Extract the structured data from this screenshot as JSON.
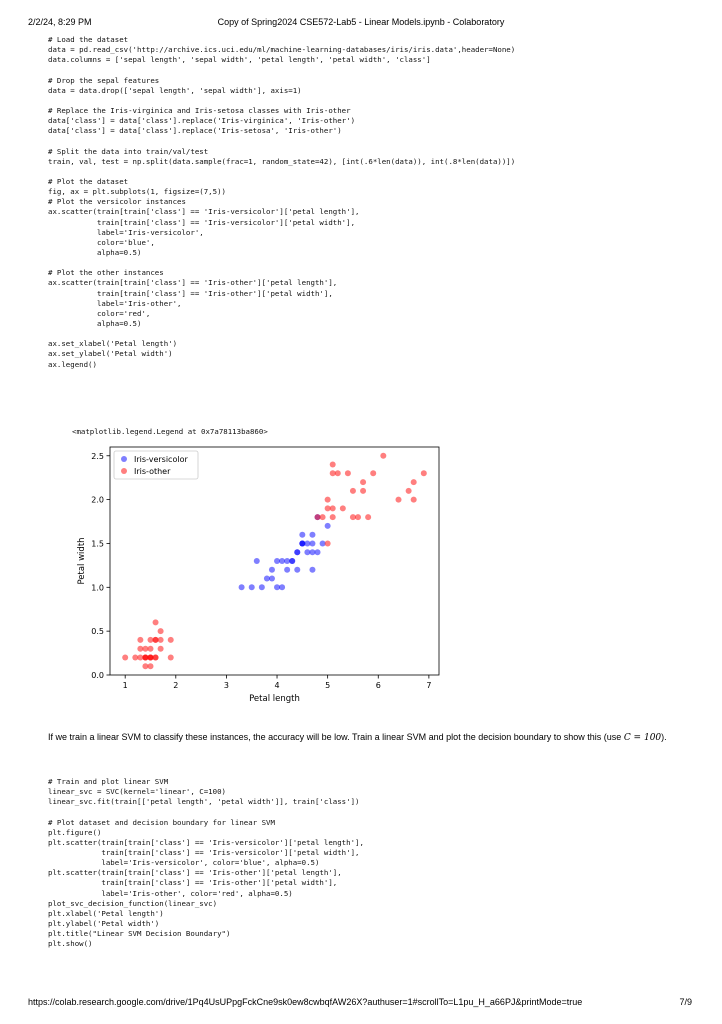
{
  "header": {
    "datetime": "2/2/24, 8:29 PM",
    "title": "Copy of Spring2024 CSE572-Lab5 - Linear Models.ipynb - Colaboratory"
  },
  "code_cell_1": [
    "# Load the dataset",
    "data = pd.read_csv('http://archive.ics.uci.edu/ml/machine-learning-databases/iris/iris.data',header=None)",
    "data.columns = ['sepal length', 'sepal width', 'petal length', 'petal width', 'class']",
    "",
    "# Drop the sepal features",
    "data = data.drop(['sepal length', 'sepal width'], axis=1)",
    "",
    "# Replace the Iris-virginica and Iris-setosa classes with Iris-other",
    "data['class'] = data['class'].replace('Iris-virginica', 'Iris-other')",
    "data['class'] = data['class'].replace('Iris-setosa', 'Iris-other')",
    "",
    "# Split the data into train/val/test",
    "train, val, test = np.split(data.sample(frac=1, random_state=42), [int(.6*len(data)), int(.8*len(data))])",
    "",
    "# Plot the dataset",
    "fig, ax = plt.subplots(1, figsize=(7,5))",
    "# Plot the versicolor instances",
    "ax.scatter(train[train['class'] == 'Iris-versicolor']['petal length'],",
    "           train[train['class'] == 'Iris-versicolor']['petal width'],",
    "           label='Iris-versicolor',",
    "           color='blue',",
    "           alpha=0.5)",
    "",
    "# Plot the other instances",
    "ax.scatter(train[train['class'] == 'Iris-other']['petal length'],",
    "           train[train['class'] == 'Iris-other']['petal width'],",
    "           label='Iris-other',",
    "           color='red',",
    "           alpha=0.5)",
    "",
    "ax.set_xlabel('Petal length')",
    "ax.set_ylabel('Petal width')",
    "ax.legend()"
  ],
  "output_text": "<matplotlib.legend.Legend at 0x7a78113ba860>",
  "markdown": {
    "text": "If we train a linear SVM to classify these instances, the accuracy will be low. Train a linear SVM and plot the decision boundary to show this (use",
    "math": "C = 100",
    "suffix": ")."
  },
  "code_cell_2": [
    "# Train and plot linear SVM",
    "linear_svc = SVC(kernel='linear', C=100)",
    "linear_svc.fit(train[['petal length', 'petal width']], train['class'])",
    "",
    "# Plot dataset and decision boundary for linear SVM",
    "plt.figure()",
    "plt.scatter(train[train['class'] == 'Iris-versicolor']['petal length'],",
    "            train[train['class'] == 'Iris-versicolor']['petal width'],",
    "            label='Iris-versicolor', color='blue', alpha=0.5)",
    "plt.scatter(train[train['class'] == 'Iris-other']['petal length'],",
    "            train[train['class'] == 'Iris-other']['petal width'],",
    "            label='Iris-other', color='red', alpha=0.5)",
    "plot_svc_decision_function(linear_svc)",
    "plt.xlabel('Petal length')",
    "plt.ylabel('Petal width')",
    "plt.title(\"Linear SVM Decision Boundary\")",
    "plt.show()"
  ],
  "footer": {
    "url": "https://colab.research.google.com/drive/1Pq4UsUPpgFckCne9sk0ew8cwbqfAW26X?authuser=1#scrollTo=L1pu_H_a66PJ&printMode=true",
    "page": "7/9"
  },
  "colors": {
    "versicolor": "#0000ff",
    "other": "#ff0000",
    "axes": "#000000"
  },
  "chart_data": {
    "type": "scatter",
    "xlabel": "Petal length",
    "ylabel": "Petal width",
    "xlim": [
      0.7,
      7.2
    ],
    "ylim": [
      0.0,
      2.6
    ],
    "xticks": [
      1,
      2,
      3,
      4,
      5,
      6,
      7
    ],
    "yticks": [
      0.0,
      0.5,
      1.0,
      1.5,
      2.0,
      2.5
    ],
    "ytick_labels": [
      "0.0",
      "0.5",
      "1.0",
      "1.5",
      "2.0",
      "2.5"
    ],
    "legend": "top-left",
    "grid": false,
    "series": [
      {
        "name": "Iris-versicolor",
        "color": "#0000ff",
        "alpha": 0.5,
        "points": [
          [
            3.3,
            1.0
          ],
          [
            3.5,
            1.0
          ],
          [
            3.7,
            1.0
          ],
          [
            3.8,
            1.1
          ],
          [
            3.9,
            1.1
          ],
          [
            3.9,
            1.2
          ],
          [
            4.0,
            1.0
          ],
          [
            4.1,
            1.0
          ],
          [
            4.0,
            1.3
          ],
          [
            4.1,
            1.3
          ],
          [
            3.6,
            1.3
          ],
          [
            4.2,
            1.3
          ],
          [
            4.3,
            1.3
          ],
          [
            4.4,
            1.2
          ],
          [
            4.2,
            1.2
          ],
          [
            4.4,
            1.4
          ],
          [
            4.5,
            1.5
          ],
          [
            4.5,
            1.6
          ],
          [
            4.4,
            1.4
          ],
          [
            4.6,
            1.4
          ],
          [
            4.5,
            1.5
          ],
          [
            4.6,
            1.5
          ],
          [
            4.7,
            1.4
          ],
          [
            4.7,
            1.5
          ],
          [
            4.7,
            1.6
          ],
          [
            4.8,
            1.4
          ],
          [
            4.9,
            1.5
          ],
          [
            5.0,
            1.7
          ],
          [
            4.8,
            1.8
          ],
          [
            4.7,
            1.2
          ],
          [
            4.3,
            1.3
          ],
          [
            4.5,
            1.5
          ]
        ]
      },
      {
        "name": "Iris-other",
        "color": "#ff0000",
        "alpha": 0.5,
        "points": [
          [
            1.0,
            0.2
          ],
          [
            1.2,
            0.2
          ],
          [
            1.3,
            0.2
          ],
          [
            1.3,
            0.3
          ],
          [
            1.3,
            0.4
          ],
          [
            1.4,
            0.1
          ],
          [
            1.4,
            0.2
          ],
          [
            1.4,
            0.2
          ],
          [
            1.4,
            0.3
          ],
          [
            1.4,
            0.2
          ],
          [
            1.5,
            0.1
          ],
          [
            1.5,
            0.2
          ],
          [
            1.5,
            0.2
          ],
          [
            1.5,
            0.4
          ],
          [
            1.5,
            0.3
          ],
          [
            1.5,
            0.2
          ],
          [
            1.6,
            0.2
          ],
          [
            1.6,
            0.4
          ],
          [
            1.6,
            0.6
          ],
          [
            1.6,
            0.2
          ],
          [
            1.7,
            0.3
          ],
          [
            1.7,
            0.5
          ],
          [
            1.9,
            0.2
          ],
          [
            1.9,
            0.4
          ],
          [
            1.7,
            0.4
          ],
          [
            1.6,
            0.4
          ],
          [
            4.8,
            1.8
          ],
          [
            4.9,
            1.8
          ],
          [
            5.0,
            2.0
          ],
          [
            5.1,
            1.8
          ],
          [
            5.1,
            1.9
          ],
          [
            5.0,
            1.5
          ],
          [
            5.1,
            2.3
          ],
          [
            5.1,
            2.4
          ],
          [
            5.2,
            2.3
          ],
          [
            5.4,
            2.3
          ],
          [
            5.5,
            1.8
          ],
          [
            5.6,
            1.8
          ],
          [
            5.5,
            2.1
          ],
          [
            5.7,
            2.2
          ],
          [
            5.7,
            2.1
          ],
          [
            5.8,
            1.8
          ],
          [
            5.9,
            2.3
          ],
          [
            6.1,
            2.5
          ],
          [
            6.4,
            2.0
          ],
          [
            6.6,
            2.1
          ],
          [
            6.7,
            2.2
          ],
          [
            6.7,
            2.0
          ],
          [
            6.9,
            2.3
          ],
          [
            5.0,
            1.9
          ],
          [
            5.3,
            1.9
          ]
        ]
      }
    ]
  }
}
